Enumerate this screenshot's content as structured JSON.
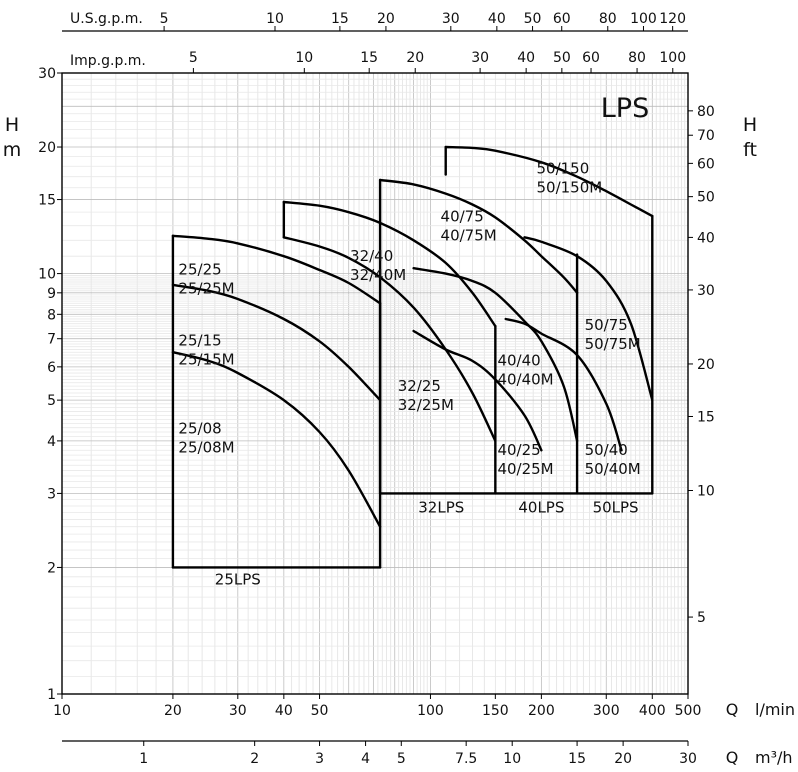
{
  "chart_data": {
    "type": "line",
    "title": "LPS",
    "x_scale": "log",
    "y_scale": "log",
    "xlim": [
      10,
      500
    ],
    "ylim": [
      1,
      30
    ],
    "x_axis": {
      "label_q": "Q",
      "label_unit": "l/min",
      "ticks": [
        10,
        20,
        30,
        40,
        50,
        100,
        150,
        200,
        300,
        400,
        500
      ],
      "tick_labels": [
        "10",
        "20",
        "30",
        "40",
        "50",
        "100",
        "150",
        "200",
        "300",
        "400",
        "500"
      ]
    },
    "x_axis_m3h": {
      "label_q": "Q",
      "label_unit": "m³/h",
      "ticks": [
        1,
        2,
        3,
        4,
        5,
        7.5,
        10,
        15,
        20,
        30
      ],
      "tick_labels": [
        "1",
        "2",
        "3",
        "4",
        "5",
        "7.5",
        "10",
        "15",
        "20",
        "30"
      ]
    },
    "x_axis_usgpm": {
      "label": "U.S.g.p.m.",
      "ticks": [
        5,
        10,
        15,
        20,
        30,
        40,
        50,
        60,
        80,
        100,
        120
      ],
      "tick_labels": [
        "5",
        "10",
        "15",
        "20",
        "30",
        "40",
        "50",
        "60",
        "80",
        "100",
        "120"
      ]
    },
    "x_axis_impgpm": {
      "label": "Imp.g.p.m.",
      "ticks": [
        5,
        10,
        15,
        20,
        30,
        40,
        50,
        60,
        80,
        100
      ],
      "tick_labels": [
        "5",
        "10",
        "15",
        "20",
        "30",
        "40",
        "50",
        "60",
        "80",
        "100"
      ]
    },
    "y_axis_m": {
      "label_h": "H",
      "label_unit": "m",
      "ticks": [
        1,
        2,
        3,
        4,
        5,
        6,
        7,
        8,
        9,
        10,
        15,
        20,
        30
      ],
      "tick_labels": [
        "1",
        "2",
        "3",
        "4",
        "5",
        "6",
        "7",
        "8",
        "9",
        "10",
        "15",
        "20",
        "30"
      ]
    },
    "y_axis_ft": {
      "label_h": "H",
      "label_unit": "ft",
      "ticks": [
        5,
        10,
        15,
        20,
        30,
        40,
        50,
        60,
        70,
        80
      ],
      "tick_labels": [
        "5",
        "10",
        "15",
        "20",
        "30",
        "40",
        "50",
        "60",
        "70",
        "80"
      ]
    },
    "regions": [
      {
        "name": "25LPS",
        "x": [
          20,
          20,
          73,
          73
        ],
        "y": [
          2,
          12.3,
          8.5,
          2
        ]
      },
      {
        "name": "32LPS",
        "x": [
          73,
          73,
          150
        ],
        "y": [
          3,
          8.5,
          3
        ]
      },
      {
        "name": "40LPS",
        "x": [
          150,
          150,
          250
        ],
        "y": [
          3,
          6.2,
          3
        ]
      },
      {
        "name": "50LPS",
        "x": [
          250,
          250,
          400
        ],
        "y": [
          3,
          6.2,
          3
        ]
      }
    ],
    "series": [
      {
        "name": "25/08 25/08M",
        "x": [
          20,
          25,
          30,
          40,
          50,
          60,
          73
        ],
        "y": [
          6.5,
          6.2,
          5.8,
          5.0,
          4.2,
          3.4,
          2.5
        ]
      },
      {
        "name": "25/15 25/15M",
        "x": [
          20,
          25,
          30,
          40,
          50,
          60,
          73
        ],
        "y": [
          9.4,
          9.1,
          8.7,
          7.8,
          6.9,
          6.0,
          5.0
        ]
      },
      {
        "name": "25/25 25/25M",
        "x": [
          20,
          25,
          30,
          40,
          50,
          60,
          73
        ],
        "y": [
          12.3,
          12.1,
          11.8,
          11.0,
          10.2,
          9.5,
          8.5
        ]
      },
      {
        "name": "32/25 32/25M",
        "x": [
          40,
          50,
          60,
          73,
          90,
          110,
          130,
          150
        ],
        "y": [
          12.2,
          11.6,
          10.9,
          9.8,
          8.3,
          6.6,
          5.2,
          4.0
        ]
      },
      {
        "name": "32/40 32/40M",
        "x": [
          40,
          50,
          60,
          73,
          90,
          110,
          130,
          150
        ],
        "y": [
          14.8,
          14.5,
          14.0,
          13.2,
          12.0,
          10.6,
          9.0,
          7.5
        ]
      },
      {
        "name": "40/25 40/25M",
        "x": [
          90,
          110,
          130,
          150,
          180,
          200
        ],
        "y": [
          7.3,
          6.6,
          6.2,
          5.6,
          4.6,
          3.8
        ]
      },
      {
        "name": "40/40 40/40M",
        "x": [
          90,
          110,
          130,
          150,
          180,
          200,
          230,
          250
        ],
        "y": [
          10.3,
          10.0,
          9.6,
          9.0,
          7.7,
          6.9,
          5.4,
          4.0
        ]
      },
      {
        "name": "40/75 40/75M",
        "x": [
          73,
          90,
          110,
          130,
          150,
          180,
          200,
          230,
          250
        ],
        "y": [
          16.7,
          16.3,
          15.5,
          14.6,
          13.6,
          12.0,
          11.0,
          9.8,
          9.0
        ]
      },
      {
        "name": "50/40 50/40M",
        "x": [
          160,
          180,
          200,
          250,
          300,
          330
        ],
        "y": [
          7.8,
          7.6,
          7.2,
          6.4,
          4.9,
          3.8
        ]
      },
      {
        "name": "50/75 50/75M",
        "x": [
          180,
          200,
          250,
          300,
          350,
          400
        ],
        "y": [
          12.2,
          11.9,
          11.0,
          9.6,
          7.6,
          5.0
        ]
      },
      {
        "name": "50/150 50/150M",
        "x": [
          110,
          130,
          150,
          200,
          250,
          300,
          350,
          400
        ],
        "y": [
          20.0,
          19.9,
          19.6,
          18.4,
          17.0,
          15.7,
          14.6,
          13.7
        ]
      }
    ],
    "curve_labels": [
      {
        "line1": "25/25",
        "line2": "25/25M",
        "at": [
          20.7,
          9.95
        ]
      },
      {
        "line1": "25/15",
        "line2": "25/15M",
        "at": [
          20.7,
          6.75
        ]
      },
      {
        "line1": "25/08",
        "line2": "25/08M",
        "at": [
          20.7,
          4.17
        ]
      },
      {
        "line1": "32/40",
        "line2": "32/40M",
        "at": [
          60.5,
          10.7
        ]
      },
      {
        "line1": "32/25",
        "line2": "32/25M",
        "at": [
          81.5,
          5.25
        ]
      },
      {
        "line1": "40/75",
        "line2": "40/75M",
        "at": [
          106.5,
          13.3
        ]
      },
      {
        "line1": "40/40",
        "line2": "40/40M",
        "at": [
          152,
          6.05
        ]
      },
      {
        "line1": "40/25",
        "line2": "40/25M",
        "at": [
          152,
          3.7
        ]
      },
      {
        "line1": "50/150",
        "line2": "50/150M",
        "at": [
          194,
          17.3
        ]
      },
      {
        "line1": "50/75",
        "line2": "50/75M",
        "at": [
          262,
          7.35
        ]
      },
      {
        "line1": "50/40",
        "line2": "50/40M",
        "at": [
          262,
          3.7
        ]
      }
    ],
    "region_labels": [
      {
        "text": "25LPS",
        "at": [
          30,
          1.82
        ]
      },
      {
        "text": "32LPS",
        "at": [
          107,
          2.7
        ]
      },
      {
        "text": "40LPS",
        "at": [
          200,
          2.7
        ]
      },
      {
        "text": "50LPS",
        "at": [
          318,
          2.7
        ]
      }
    ]
  }
}
